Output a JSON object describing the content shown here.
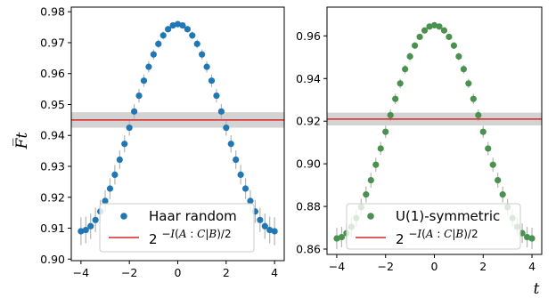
{
  "chart_data": [
    {
      "type": "scatter",
      "ylabel": "F̅t",
      "xlabel": "",
      "xlim": [
        -4.4,
        4.4
      ],
      "ylim": [
        0.8995,
        0.9815
      ],
      "xticks": [
        "−4",
        "−2",
        "0",
        "2",
        "4"
      ],
      "yticks": [
        "0.90",
        "0.91",
        "0.92",
        "0.93",
        "0.94",
        "0.95",
        "0.96",
        "0.97",
        "0.98"
      ],
      "series": [
        {
          "name": "Haar random",
          "color": "#1f77b4",
          "peak": 0.976,
          "trough": 0.909,
          "t_half_range": 4.0,
          "n_points": 41,
          "err_max": 0.0045
        }
      ],
      "hline": {
        "value": 0.945,
        "band": [
          0.9425,
          0.9475
        ],
        "color": "#d62728",
        "band_color": "#d3d3d3"
      },
      "legend": {
        "placement": "lower-center",
        "items": [
          {
            "kind": "marker",
            "label": "Haar random"
          },
          {
            "kind": "line",
            "label_base": "2",
            "label_exp_prefix": "−",
            "label_exp_it1": "I",
            "label_exp_mid": "(",
            "label_exp_it2": "A",
            "label_exp_mid2": " : ",
            "label_exp_it3": "C",
            "label_exp_mid3": "|",
            "label_exp_it4": "B",
            "label_exp_end": ")/2"
          }
        ]
      }
    },
    {
      "type": "scatter",
      "ylabel": "",
      "xlabel": "t",
      "xlim": [
        -4.4,
        4.4
      ],
      "ylim": [
        0.8575,
        0.9735
      ],
      "xticks": [
        "−4",
        "−2",
        "0",
        "2",
        "4"
      ],
      "yticks": [
        "0.86",
        "0.88",
        "0.90",
        "0.92",
        "0.94",
        "0.96"
      ],
      "series": [
        {
          "name": "U(1)-symmetric",
          "color": "#4a9150",
          "peak": 0.965,
          "trough": 0.865,
          "t_half_range": 4.0,
          "n_points": 41,
          "err_max": 0.005
        }
      ],
      "hline": {
        "value": 0.921,
        "band": [
          0.918,
          0.924
        ],
        "color": "#d62728",
        "band_color": "#d3d3d3"
      },
      "legend": {
        "placement": "lower-center",
        "items": [
          {
            "kind": "marker",
            "label": "U(1)-symmetric"
          },
          {
            "kind": "line",
            "label_base": "2",
            "label_exp_prefix": "−",
            "label_exp_it1": "I",
            "label_exp_mid": "(",
            "label_exp_it2": "A",
            "label_exp_mid2": " : ",
            "label_exp_it3": "C",
            "label_exp_mid3": "|",
            "label_exp_it4": "B",
            "label_exp_end": ")/2"
          }
        ]
      }
    }
  ]
}
